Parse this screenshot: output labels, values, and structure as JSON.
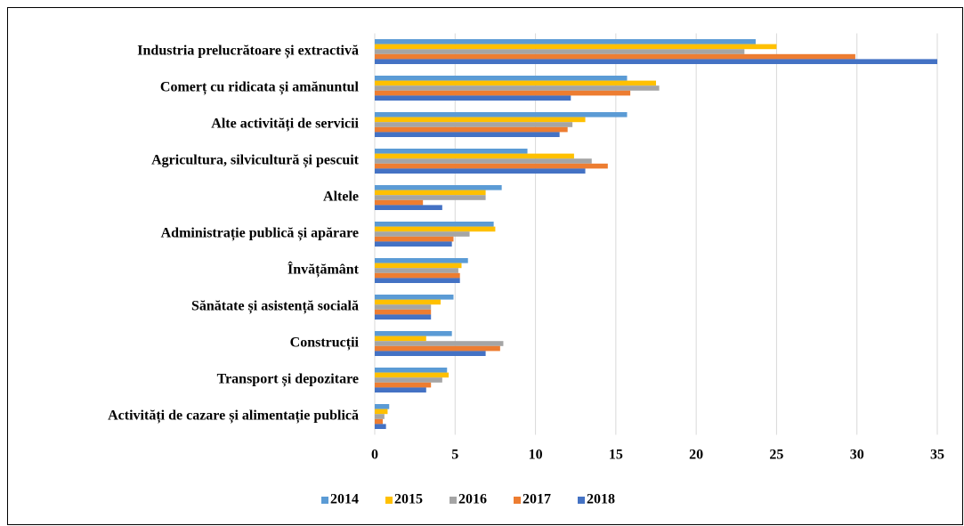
{
  "chart_data": {
    "type": "bar",
    "orientation": "horizontal",
    "categories": [
      "Industria prelucrătoare și extractivă",
      "Comerț cu ridicata și amănuntul",
      "Alte activități de servicii",
      "Agricultura, silvicultură și pescuit",
      "Altele",
      "Administrație publică și apărare",
      "Învățământ",
      "Sănătate și asistență socială",
      "Construcții",
      "Transport și depozitare",
      "Activități de cazare și alimentație publică"
    ],
    "series": [
      {
        "name": "2014",
        "color": "#5b9bd5",
        "values": [
          23.7,
          15.7,
          15.7,
          9.5,
          7.9,
          7.4,
          5.8,
          4.9,
          4.8,
          4.5,
          0.9
        ]
      },
      {
        "name": "2015",
        "color": "#ffc000",
        "values": [
          25,
          17.5,
          13.1,
          12.4,
          6.9,
          7.5,
          5.4,
          4.1,
          3.2,
          4.6,
          0.8
        ]
      },
      {
        "name": "2016",
        "color": "#a5a5a5",
        "values": [
          23,
          17.7,
          12.3,
          13.5,
          6.9,
          5.9,
          5.2,
          3.5,
          8,
          4.2,
          0.6
        ]
      },
      {
        "name": "2017",
        "color": "#ed7d31",
        "values": [
          29.9,
          15.9,
          12,
          14.5,
          3,
          4.9,
          5.3,
          3.5,
          7.8,
          3.5,
          0.5
        ]
      },
      {
        "name": "2018",
        "color": "#4472c4",
        "values": [
          35,
          12.2,
          11.5,
          13.1,
          4.2,
          4.8,
          5.3,
          3.5,
          6.9,
          3.2,
          0.7
        ]
      }
    ],
    "xlim": [
      0,
      35
    ],
    "xticks": [
      0,
      5,
      10,
      15,
      20,
      25,
      30,
      35
    ],
    "grid": true,
    "legend": "bottom"
  }
}
